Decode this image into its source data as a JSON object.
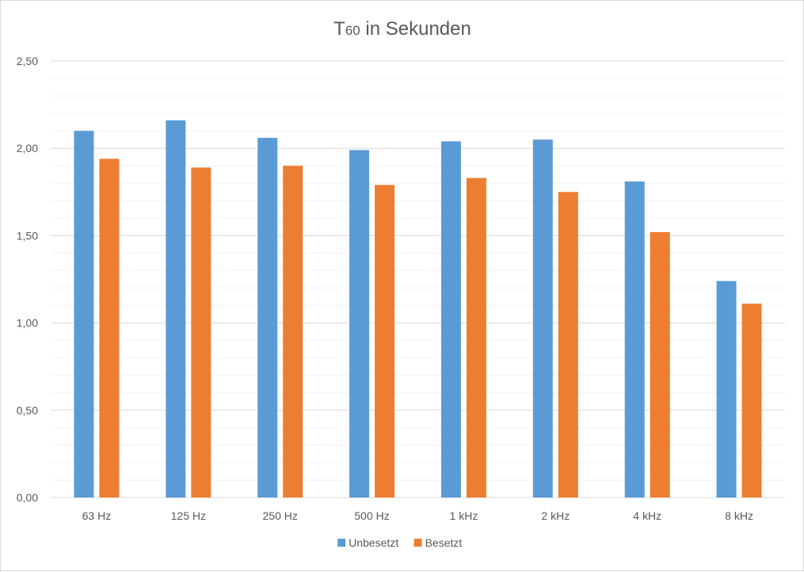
{
  "chart_data": {
    "type": "bar",
    "title_main": "T",
    "title_sub": "60",
    "title_rest": " in Sekunden",
    "categories": [
      "63 Hz",
      "125 Hz",
      "250 Hz",
      "500 Hz",
      "1 kHz",
      "2 kHz",
      "4 kHz",
      "8 kHz"
    ],
    "series": [
      {
        "name": "Unbesetzt",
        "color": "#5b9bd5",
        "values": [
          2.1,
          2.16,
          2.06,
          1.99,
          2.04,
          2.05,
          1.81,
          1.24
        ]
      },
      {
        "name": "Besetzt",
        "color": "#ed7d31",
        "values": [
          1.94,
          1.89,
          1.9,
          1.79,
          1.83,
          1.75,
          1.52,
          1.11
        ]
      }
    ],
    "ylim": [
      0,
      2.5
    ],
    "yticks": [
      "0,00",
      "0,50",
      "1,00",
      "1,50",
      "2,00",
      "2,50"
    ],
    "y_major_step": 0.5,
    "y_minor_step": 0.1,
    "grid": true,
    "legend_position": "bottom",
    "colors": {
      "gridline_major": "#d9d9d9",
      "gridline_minor": "#f2f2f2",
      "axis_text": "#595959"
    }
  }
}
